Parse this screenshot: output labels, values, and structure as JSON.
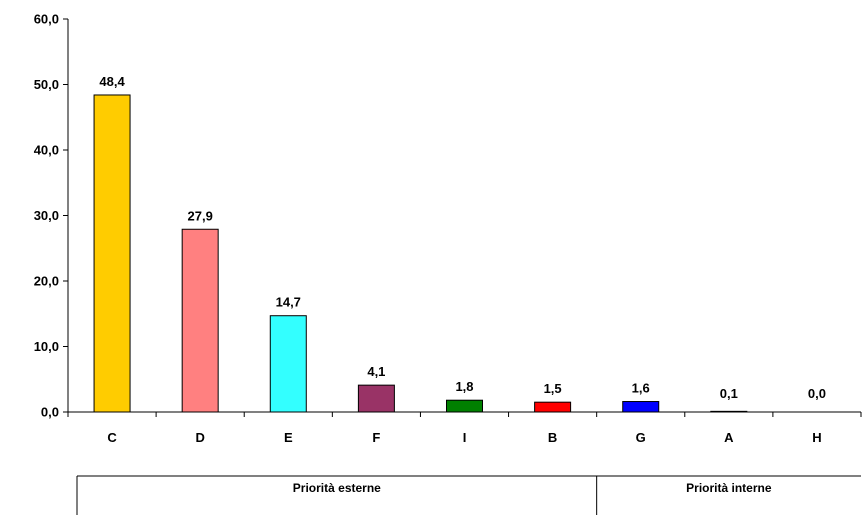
{
  "chart_data": {
    "type": "bar",
    "categories": [
      "C",
      "D",
      "E",
      "F",
      "I",
      "B",
      "G",
      "A",
      "H"
    ],
    "values": [
      48.4,
      27.9,
      14.7,
      4.1,
      1.8,
      1.5,
      1.6,
      0.1,
      0.0
    ],
    "value_labels": [
      "48,4",
      "27,9",
      "14,7",
      "4,1",
      "1,8",
      "1,5",
      "1,6",
      "0,1",
      "0,0"
    ],
    "colors": [
      "#FFCC00",
      "#FF8080",
      "#33FFFF",
      "#993366",
      "#008000",
      "#FF0000",
      "#0000FF",
      "#000000",
      "#000000"
    ],
    "ylim": [
      0,
      60
    ],
    "yticks": [
      0,
      10,
      20,
      30,
      40,
      50,
      60
    ],
    "ytick_labels": [
      "0,0",
      "10,0",
      "20,0",
      "30,0",
      "40,0",
      "50,0",
      "60,0"
    ],
    "grid": false,
    "groups": [
      {
        "label": "Priorità esterne",
        "start": 0,
        "end": 5
      },
      {
        "label": "Priorità interne",
        "start": 6,
        "end": 8
      }
    ]
  }
}
